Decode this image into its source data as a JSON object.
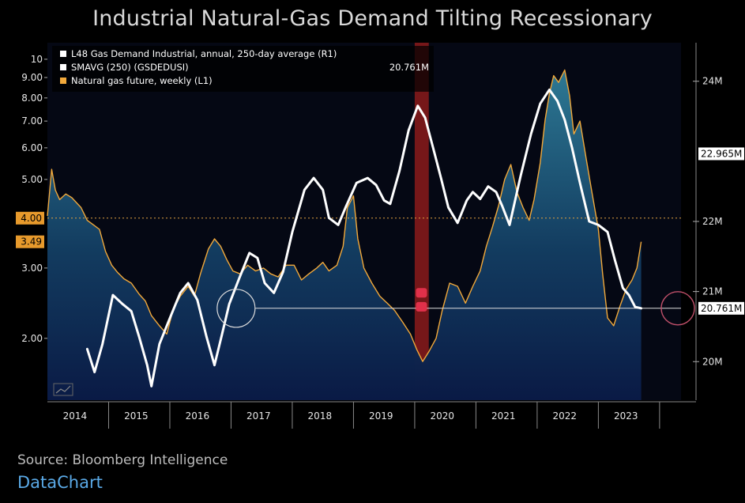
{
  "title": "Industrial Natural-Gas Demand Tilting Recessionary",
  "source": "Source: Bloomberg Intelligence",
  "brand": "DataChart",
  "chart_data": {
    "type": "line",
    "x_tick_labels": [
      "2014",
      "2015",
      "2016",
      "2017",
      "2018",
      "2019",
      "2020",
      "2021",
      "2022",
      "2023"
    ],
    "xlim": [
      2013.55,
      2023.9
    ],
    "left_axis": {
      "scale": "log",
      "ylim": [
        1.4,
        11
      ],
      "tick_labels": [
        "10",
        "9.00",
        "8.00",
        "7.00",
        "6.00",
        "5.00",
        "3.00",
        "2.00"
      ],
      "tick_values": [
        10,
        9,
        8,
        7,
        6,
        5,
        3,
        2
      ],
      "highlight_labels": [
        "4.00",
        "3.49"
      ],
      "highlight_values": [
        4.0,
        3.49
      ]
    },
    "right_axis": {
      "ylim": [
        19.45,
        24.55
      ],
      "tick_labels": [
        "24M",
        "22M",
        "21M",
        "20M"
      ],
      "tick_values": [
        24,
        22,
        21,
        20
      ],
      "badge_labels": [
        "22.965M",
        "20.761M"
      ],
      "badge_values": [
        22.965,
        20.761
      ]
    },
    "legend": {
      "position": "top-left",
      "entries": [
        {
          "label": "L48 Gas Demand Industrial, annual, 250-day average (R1)",
          "color": "#ffffff",
          "value": ""
        },
        {
          "label": "SMAVG (250) (GSDEDUSI)",
          "color": "#ffffff",
          "value": "20.761M"
        },
        {
          "label": "Natural gas future, weekly (L1)",
          "color": "#f2a93b",
          "value": ""
        }
      ]
    },
    "reference_lines": [
      {
        "axis": "left",
        "value": 4.0,
        "style": "dotted",
        "color": "#e0a040"
      },
      {
        "axis": "right",
        "value": 20.761,
        "style": "solid",
        "color": "#dddddd"
      }
    ],
    "recession_band": {
      "x_start": 2019.55,
      "x_end": 2019.78,
      "color": "#8b1a1a"
    },
    "series": [
      {
        "name": "L48 Gas Demand Industrial, annual, 250-day average (R1)",
        "axis": "right",
        "color": "#ffffff",
        "points": [
          [
            2014.2,
            20.18
          ],
          [
            2014.32,
            19.85
          ],
          [
            2014.45,
            20.25
          ],
          [
            2014.62,
            20.95
          ],
          [
            2014.78,
            20.82
          ],
          [
            2014.92,
            20.72
          ],
          [
            2015.05,
            20.35
          ],
          [
            2015.18,
            19.95
          ],
          [
            2015.25,
            19.65
          ],
          [
            2015.38,
            20.25
          ],
          [
            2015.55,
            20.62
          ],
          [
            2015.72,
            20.98
          ],
          [
            2015.85,
            21.12
          ],
          [
            2016.0,
            20.88
          ],
          [
            2016.15,
            20.35
          ],
          [
            2016.28,
            19.95
          ],
          [
            2016.4,
            20.38
          ],
          [
            2016.52,
            20.82
          ],
          [
            2016.68,
            21.18
          ],
          [
            2016.85,
            21.55
          ],
          [
            2016.98,
            21.48
          ],
          [
            2017.1,
            21.12
          ],
          [
            2017.25,
            20.98
          ],
          [
            2017.4,
            21.28
          ],
          [
            2017.55,
            21.85
          ],
          [
            2017.75,
            22.45
          ],
          [
            2017.9,
            22.62
          ],
          [
            2018.05,
            22.45
          ],
          [
            2018.15,
            22.05
          ],
          [
            2018.3,
            21.95
          ],
          [
            2018.42,
            22.2
          ],
          [
            2018.6,
            22.55
          ],
          [
            2018.78,
            22.62
          ],
          [
            2018.92,
            22.52
          ],
          [
            2019.05,
            22.3
          ],
          [
            2019.15,
            22.25
          ],
          [
            2019.3,
            22.72
          ],
          [
            2019.45,
            23.3
          ],
          [
            2019.6,
            23.65
          ],
          [
            2019.72,
            23.48
          ],
          [
            2019.85,
            23.05
          ],
          [
            2019.98,
            22.62
          ],
          [
            2020.1,
            22.2
          ],
          [
            2020.25,
            21.98
          ],
          [
            2020.4,
            22.3
          ],
          [
            2020.5,
            22.42
          ],
          [
            2020.62,
            22.32
          ],
          [
            2020.75,
            22.5
          ],
          [
            2020.88,
            22.42
          ],
          [
            2020.98,
            22.22
          ],
          [
            2021.1,
            21.95
          ],
          [
            2021.28,
            22.65
          ],
          [
            2021.45,
            23.25
          ],
          [
            2021.6,
            23.68
          ],
          [
            2021.75,
            23.88
          ],
          [
            2021.88,
            23.72
          ],
          [
            2022.0,
            23.45
          ],
          [
            2022.12,
            23.05
          ],
          [
            2022.25,
            22.55
          ],
          [
            2022.4,
            22.0
          ],
          [
            2022.55,
            21.95
          ],
          [
            2022.7,
            21.85
          ],
          [
            2022.82,
            21.45
          ],
          [
            2022.95,
            21.05
          ],
          [
            2023.05,
            20.95
          ],
          [
            2023.15,
            20.78
          ],
          [
            2023.25,
            20.761
          ]
        ]
      },
      {
        "name": "Natural gas future, weekly (L1)",
        "axis": "left",
        "color": "#f2a93b",
        "points": [
          [
            2013.55,
            4.05
          ],
          [
            2013.62,
            5.3
          ],
          [
            2013.68,
            4.7
          ],
          [
            2013.75,
            4.45
          ],
          [
            2013.85,
            4.6
          ],
          [
            2013.95,
            4.5
          ],
          [
            2014.1,
            4.25
          ],
          [
            2014.2,
            3.95
          ],
          [
            2014.3,
            3.85
          ],
          [
            2014.4,
            3.75
          ],
          [
            2014.5,
            3.3
          ],
          [
            2014.6,
            3.05
          ],
          [
            2014.7,
            2.92
          ],
          [
            2014.8,
            2.82
          ],
          [
            2014.92,
            2.75
          ],
          [
            2015.05,
            2.58
          ],
          [
            2015.15,
            2.48
          ],
          [
            2015.25,
            2.28
          ],
          [
            2015.38,
            2.15
          ],
          [
            2015.5,
            2.05
          ],
          [
            2015.6,
            2.35
          ],
          [
            2015.72,
            2.55
          ],
          [
            2015.85,
            2.7
          ],
          [
            2015.95,
            2.55
          ],
          [
            2016.05,
            2.9
          ],
          [
            2016.18,
            3.35
          ],
          [
            2016.28,
            3.55
          ],
          [
            2016.38,
            3.4
          ],
          [
            2016.48,
            3.15
          ],
          [
            2016.58,
            2.95
          ],
          [
            2016.7,
            2.9
          ],
          [
            2016.82,
            3.05
          ],
          [
            2016.95,
            2.95
          ],
          [
            2017.08,
            3.0
          ],
          [
            2017.2,
            2.9
          ],
          [
            2017.32,
            2.85
          ],
          [
            2017.45,
            3.05
          ],
          [
            2017.58,
            3.05
          ],
          [
            2017.7,
            2.8
          ],
          [
            2017.82,
            2.9
          ],
          [
            2017.95,
            3.0
          ],
          [
            2018.05,
            3.1
          ],
          [
            2018.15,
            2.95
          ],
          [
            2018.28,
            3.05
          ],
          [
            2018.38,
            3.4
          ],
          [
            2018.45,
            4.25
          ],
          [
            2018.55,
            4.55
          ],
          [
            2018.62,
            3.55
          ],
          [
            2018.72,
            3.0
          ],
          [
            2018.85,
            2.75
          ],
          [
            2018.98,
            2.55
          ],
          [
            2019.1,
            2.45
          ],
          [
            2019.22,
            2.35
          ],
          [
            2019.35,
            2.2
          ],
          [
            2019.48,
            2.05
          ],
          [
            2019.58,
            1.88
          ],
          [
            2019.68,
            1.75
          ],
          [
            2019.78,
            1.85
          ],
          [
            2019.9,
            2.0
          ],
          [
            2020.0,
            2.35
          ],
          [
            2020.12,
            2.75
          ],
          [
            2020.25,
            2.7
          ],
          [
            2020.38,
            2.45
          ],
          [
            2020.5,
            2.7
          ],
          [
            2020.62,
            2.95
          ],
          [
            2020.72,
            3.4
          ],
          [
            2020.82,
            3.8
          ],
          [
            2020.92,
            4.3
          ],
          [
            2021.02,
            5.0
          ],
          [
            2021.12,
            5.45
          ],
          [
            2021.22,
            4.65
          ],
          [
            2021.32,
            4.25
          ],
          [
            2021.42,
            3.95
          ],
          [
            2021.5,
            4.45
          ],
          [
            2021.6,
            5.5
          ],
          [
            2021.68,
            7.05
          ],
          [
            2021.75,
            8.2
          ],
          [
            2021.82,
            9.1
          ],
          [
            2021.9,
            8.75
          ],
          [
            2022.0,
            9.4
          ],
          [
            2022.08,
            8.1
          ],
          [
            2022.15,
            6.5
          ],
          [
            2022.25,
            7.0
          ],
          [
            2022.35,
            5.65
          ],
          [
            2022.45,
            4.6
          ],
          [
            2022.55,
            3.75
          ],
          [
            2022.62,
            2.9
          ],
          [
            2022.7,
            2.25
          ],
          [
            2022.8,
            2.15
          ],
          [
            2022.9,
            2.4
          ],
          [
            2023.0,
            2.65
          ],
          [
            2023.1,
            2.8
          ],
          [
            2023.18,
            3.0
          ],
          [
            2023.25,
            3.49
          ]
        ]
      }
    ]
  }
}
